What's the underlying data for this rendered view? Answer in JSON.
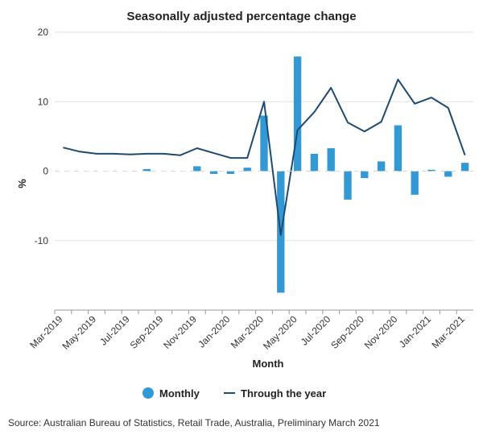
{
  "chart_data": {
    "type": "bar",
    "title": "Seasonally adjusted percentage change",
    "xlabel": "Month",
    "ylabel": "%",
    "ylim": [
      -20,
      20
    ],
    "yticks": [
      20,
      10,
      0,
      -10
    ],
    "grid": true,
    "legend_position": "bottom",
    "categories": [
      "Mar-2019",
      "Apr-2019",
      "May-2019",
      "Jun-2019",
      "Jul-2019",
      "Aug-2019",
      "Sep-2019",
      "Oct-2019",
      "Nov-2019",
      "Dec-2019",
      "Jan-2020",
      "Feb-2020",
      "Mar-2020",
      "Apr-2020",
      "May-2020",
      "Jun-2020",
      "Jul-2020",
      "Aug-2020",
      "Sep-2020",
      "Oct-2020",
      "Nov-2020",
      "Dec-2020",
      "Jan-2021",
      "Feb-2021",
      "Mar-2021"
    ],
    "tick_labels": [
      "Mar-2019",
      "May-2019",
      "Jul-2019",
      "Sep-2019",
      "Nov-2019",
      "Jan-2020",
      "Mar-2020",
      "May-2020",
      "Jul-2020",
      "Sep-2020",
      "Nov-2020",
      "Jan-2021",
      "Mar-2021"
    ],
    "series": [
      {
        "name": "Monthly",
        "type": "bar",
        "color": "#3399d4",
        "values": [
          0.0,
          0.0,
          0.0,
          0.0,
          0.0,
          0.3,
          0.0,
          0.0,
          0.7,
          -0.4,
          -0.4,
          0.5,
          8.0,
          -17.5,
          16.5,
          2.5,
          3.3,
          -4.1,
          -1.0,
          1.4,
          6.6,
          -3.4,
          0.2,
          -0.8,
          1.2
        ]
      },
      {
        "name": "Through the year",
        "type": "line",
        "color": "#1e4a72",
        "values": [
          3.4,
          2.8,
          2.5,
          2.5,
          2.4,
          2.5,
          2.5,
          2.3,
          3.3,
          2.6,
          1.9,
          1.9,
          10.0,
          -9.2,
          5.9,
          8.5,
          12.0,
          7.0,
          5.7,
          7.1,
          13.2,
          9.7,
          10.6,
          9.1,
          2.3
        ]
      }
    ]
  },
  "source_note": "Source: Australian Bureau of Statistics, Retail Trade, Australia, Preliminary March 2021"
}
